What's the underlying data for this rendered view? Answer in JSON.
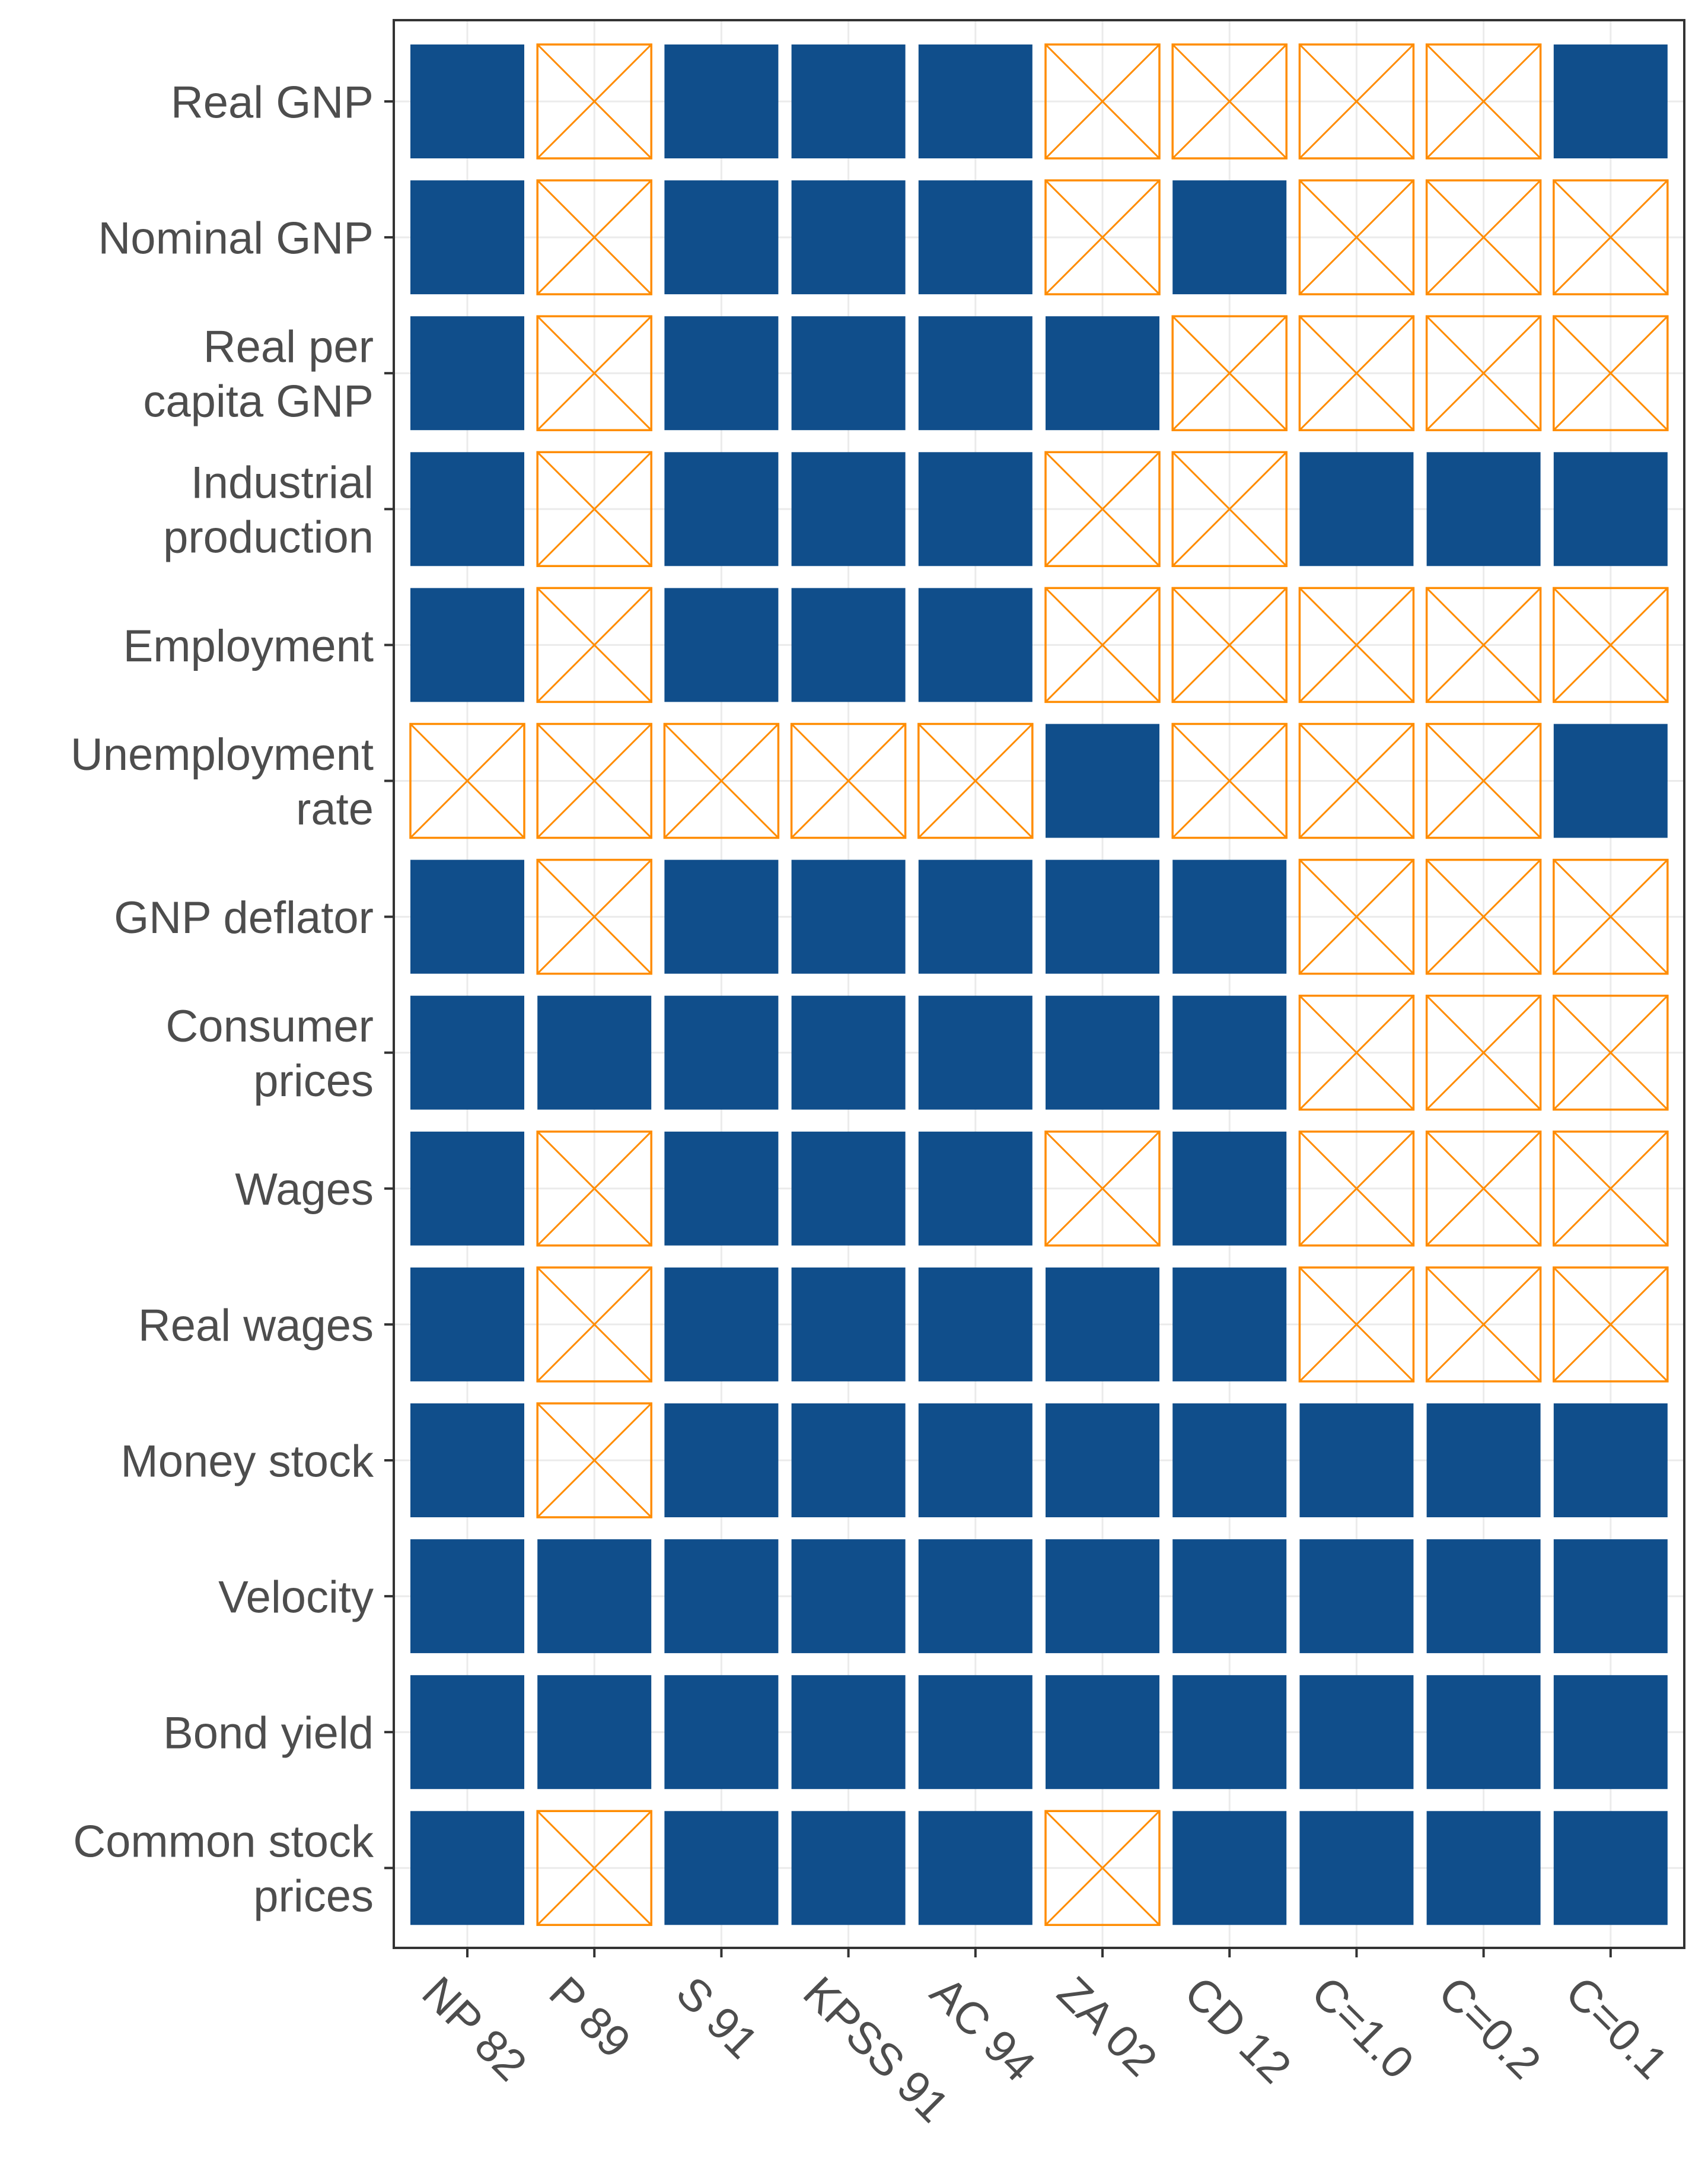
{
  "chart_data": {
    "type": "heatmap",
    "title": "",
    "xlabel": "",
    "ylabel": "",
    "legend": "none",
    "x": [
      "NP 82",
      "P 89",
      "S 91",
      "KPSS 91",
      "AC 94",
      "ZA 02",
      "CD 12",
      "C=1.0",
      "C=0.2",
      "C=0.1"
    ],
    "y": [
      "Real GNP",
      "Nominal GNP",
      "Real per capita GNP",
      "Industrial production",
      "Employment",
      "Unemployment rate",
      "GNP deflator",
      "Consumer prices",
      "Wages",
      "Real wages",
      "Money stock",
      "Velocity",
      "Bond yield",
      "Common stock prices"
    ],
    "y_tick_lines": [
      [
        "Real GNP"
      ],
      [
        "Nominal GNP"
      ],
      [
        "Real per",
        "capita GNP"
      ],
      [
        "Industrial",
        "production"
      ],
      [
        "Employment"
      ],
      [
        "Unemployment",
        "rate"
      ],
      [
        "GNP deflator"
      ],
      [
        "Consumer",
        "prices"
      ],
      [
        "Wages"
      ],
      [
        "Real wages"
      ],
      [
        "Money stock"
      ],
      [
        "Velocity"
      ],
      [
        "Bond yield"
      ],
      [
        "Common stock",
        "prices"
      ]
    ],
    "cell_encoding": {
      "1": "filled square",
      "0": "outlined square with X"
    },
    "values": [
      [
        1,
        0,
        1,
        1,
        1,
        0,
        0,
        0,
        0,
        1
      ],
      [
        1,
        0,
        1,
        1,
        1,
        0,
        1,
        0,
        0,
        0
      ],
      [
        1,
        0,
        1,
        1,
        1,
        1,
        0,
        0,
        0,
        0
      ],
      [
        1,
        0,
        1,
        1,
        1,
        0,
        0,
        1,
        1,
        1
      ],
      [
        1,
        0,
        1,
        1,
        1,
        0,
        0,
        0,
        0,
        0
      ],
      [
        0,
        0,
        0,
        0,
        0,
        1,
        0,
        0,
        0,
        1
      ],
      [
        1,
        0,
        1,
        1,
        1,
        1,
        1,
        0,
        0,
        0
      ],
      [
        1,
        1,
        1,
        1,
        1,
        1,
        1,
        0,
        0,
        0
      ],
      [
        1,
        0,
        1,
        1,
        1,
        0,
        1,
        0,
        0,
        0
      ],
      [
        1,
        0,
        1,
        1,
        1,
        1,
        1,
        0,
        0,
        0
      ],
      [
        1,
        0,
        1,
        1,
        1,
        1,
        1,
        1,
        1,
        1
      ],
      [
        1,
        1,
        1,
        1,
        1,
        1,
        1,
        1,
        1,
        1
      ],
      [
        1,
        1,
        1,
        1,
        1,
        1,
        1,
        1,
        1,
        1
      ],
      [
        1,
        0,
        1,
        1,
        1,
        0,
        1,
        1,
        1,
        1
      ]
    ],
    "colors": {
      "filled": "#104E8B",
      "outline": "#FF8C00",
      "panel_border": "#333333",
      "grid": "#EBEBEB",
      "text": "#4D4D4D",
      "background": "#FFFFFF"
    }
  }
}
